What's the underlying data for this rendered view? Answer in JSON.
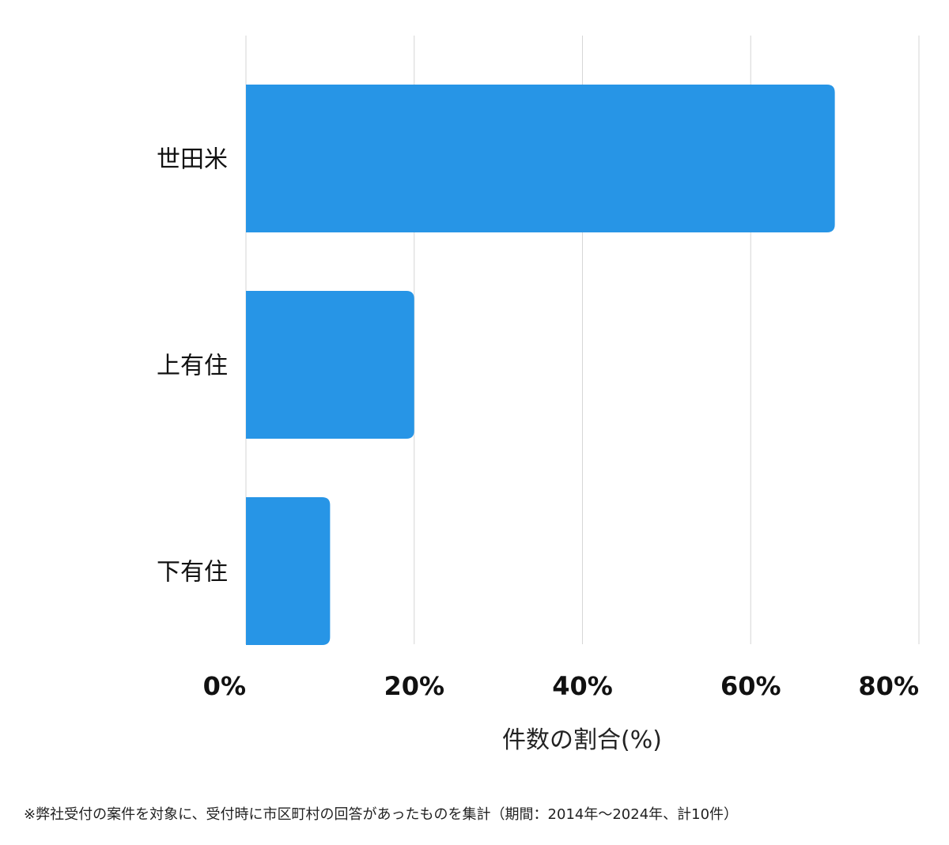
{
  "chart_data": {
    "type": "bar",
    "orientation": "horizontal",
    "categories": [
      "世田米",
      "上有住",
      "下有住"
    ],
    "values": [
      70,
      20,
      10
    ],
    "xlabel": "件数の割合(%)",
    "ylabel": "",
    "xlim": [
      0,
      80
    ],
    "ticks": [
      0,
      20,
      40,
      60,
      80
    ],
    "tick_labels": [
      "0%",
      "20%",
      "40%",
      "60%",
      "80%"
    ],
    "grid": true,
    "bar_color": "#2795e6"
  },
  "footnote": "※弊社受付の案件を対象に、受付時に市区町村の回答があったものを集計（期間：2014年～2024年、計10件）"
}
